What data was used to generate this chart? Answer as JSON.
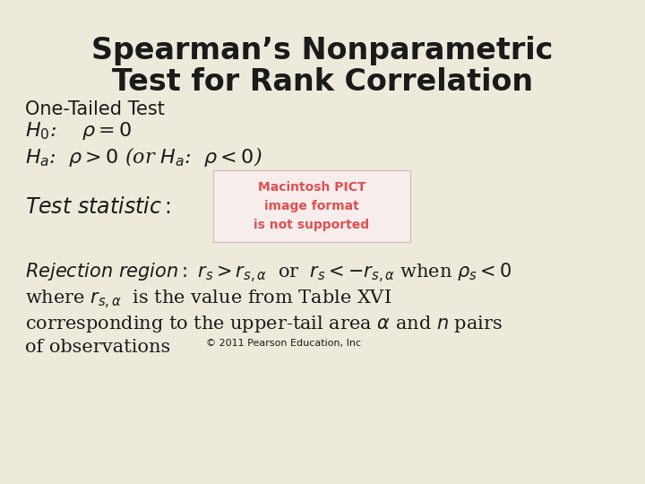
{
  "background_color": "#edeadb",
  "title_line1": "Spearman’s Nonparametric",
  "title_line2": "Test for Rank Correlation",
  "title_fontsize": 24,
  "body_fontsize": 15,
  "small_fontsize": 13,
  "subtitle": "One-Tailed Test",
  "pict_box_color": "#f8eded",
  "pict_text_color": "#e05050",
  "pict_text": "Macintosh PICT\nimage format\nis not supported",
  "copyright": "© 2011 Pearson Education, Inc",
  "text_color": "#1a1a1a"
}
